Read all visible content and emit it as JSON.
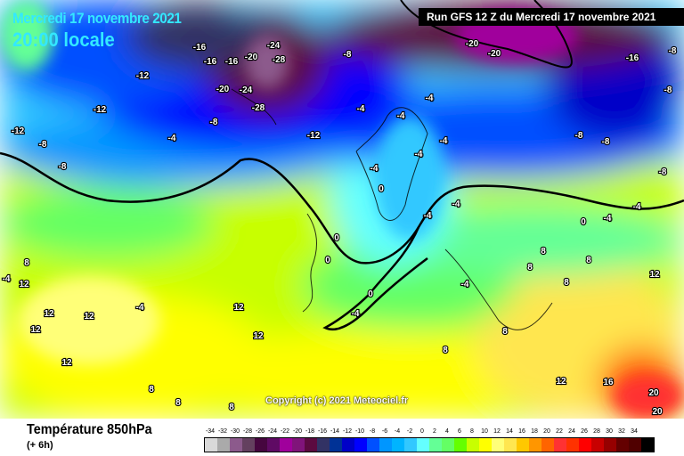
{
  "header": {
    "date": "Mercredi 17 novembre 2021",
    "time": "20:00 locale",
    "run": "Run GFS 12 Z du Mercredi 17 novembre 2021"
  },
  "map": {
    "copyright": "Copyright (c) 2021 Meteociel.fr",
    "isotherm_labels": [
      "-12",
      "-16",
      "-16",
      "-16",
      "-20",
      "-24",
      "-28",
      "-24",
      "-28",
      "-20",
      "-20",
      "-20",
      "-16",
      "-12",
      "-8",
      "-8",
      "-8",
      "-12",
      "-4",
      "-4",
      "-8",
      "-8",
      "-4",
      "-4",
      "-4",
      "-4",
      "-4",
      "0",
      "0",
      "0",
      "-4",
      "0",
      "0",
      "-4",
      "-4",
      "-4",
      "-4",
      "8",
      "8",
      "8",
      "12",
      "12",
      "12",
      "12",
      "8",
      "8",
      "12",
      "12",
      "8",
      "8",
      "8",
      "12",
      "16",
      "20",
      "20",
      "-8",
      "-8",
      "-4",
      "-8",
      "8",
      "12",
      "8",
      "12",
      "-8",
      "-12",
      "-4",
      "-4"
    ]
  },
  "footer": {
    "title": "Température 850hPa",
    "subtitle": "(+ 6h)"
  },
  "legend": {
    "unit_labels": [
      "-34",
      "-32",
      "-30",
      "-28",
      "-26",
      "-24",
      "-22",
      "-20",
      "-18",
      "-16",
      "-14",
      "-12",
      "-10",
      "-8",
      "-6",
      "-4",
      "-2",
      "0",
      "2",
      "4",
      "6",
      "8",
      "10",
      "12",
      "14",
      "16",
      "18",
      "20",
      "22",
      "24",
      "26",
      "28",
      "30",
      "32",
      "34"
    ],
    "colors": [
      "#d9d9d9",
      "#aaaaaa",
      "#8c5a8c",
      "#64405f",
      "#46063f",
      "#5f0a64",
      "#a0009c",
      "#80147a",
      "#5c0a40",
      "#323264",
      "#003296",
      "#0000c8",
      "#0000ff",
      "#0050ff",
      "#0096ff",
      "#00b4ff",
      "#32c8ff",
      "#64ffff",
      "#64ff96",
      "#64ff64",
      "#64ff00",
      "#c8ff00",
      "#ffff00",
      "#ffff78",
      "#ffe650",
      "#ffc800",
      "#ff9600",
      "#ff6400",
      "#ff3232",
      "#ff3200",
      "#ff0000",
      "#c80000",
      "#960000",
      "#640000",
      "#500000",
      "#000000"
    ]
  }
}
